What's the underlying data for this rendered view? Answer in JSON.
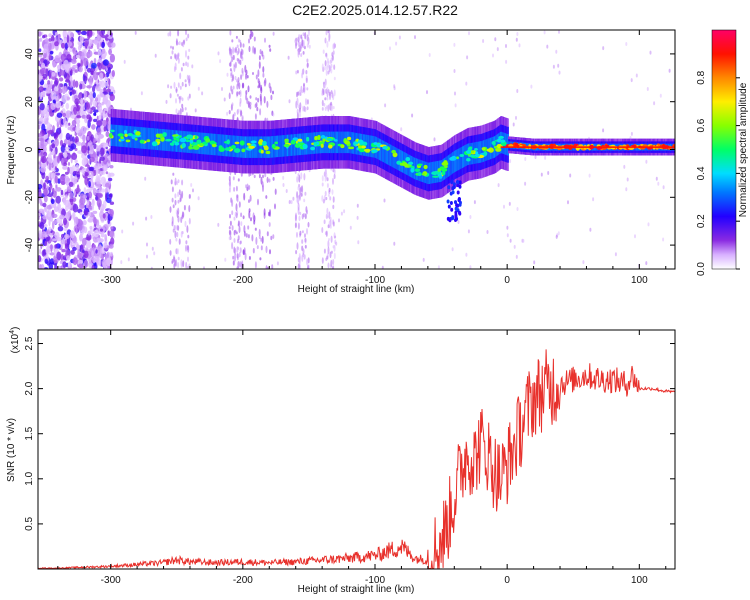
{
  "title": "C2E2.2025.014.12.57.R22",
  "chart_data": [
    {
      "type": "heatmap",
      "xlabel": "Height of straight line (km)",
      "ylabel": "Frequency (Hz)",
      "xlim": [
        -355,
        127
      ],
      "ylim": [
        -50,
        50
      ],
      "x_ticks": [
        -300,
        -200,
        -100,
        0,
        100
      ],
      "x_tick_labels": [
        "-300",
        "-200",
        "-100",
        "0",
        "100"
      ],
      "y_ticks": [
        -40,
        -20,
        0,
        20,
        40
      ],
      "y_tick_labels": [
        "-40",
        "-20",
        "0",
        "20",
        "40"
      ],
      "colorbar": {
        "label": "Normalized spectral amplitude",
        "range": [
          0,
          1
        ],
        "ticks": [
          0.0,
          0.2,
          0.4,
          0.6,
          0.8
        ],
        "tick_labels": [
          "0.0",
          "0.2",
          "0.4",
          "0.6",
          "0.8"
        ],
        "colors": [
          "#ffffff",
          "#cc88ff",
          "#7700ee",
          "#0000ff",
          "#00c8ff",
          "#00ff66",
          "#ccff00",
          "#ffee00",
          "#ff7700",
          "#ff0000",
          "#ff0077"
        ]
      },
      "ridge": {
        "name": "",
        "x": [
          -300,
          -280,
          -260,
          -240,
          -220,
          -200,
          -180,
          -160,
          -140,
          -120,
          -100,
          -90,
          -80,
          -70,
          -60,
          -50,
          -40,
          -30,
          -20,
          -10,
          -5,
          0,
          20,
          40,
          60,
          80,
          100,
          127
        ],
        "y": [
          6,
          5,
          4,
          3,
          2,
          1,
          1,
          2,
          3,
          3,
          1,
          -2,
          -5,
          -8,
          -10,
          -9,
          -5,
          -2,
          -1,
          1,
          3,
          2,
          1,
          1,
          1,
          1,
          1,
          1
        ]
      }
    },
    {
      "type": "line",
      "xlabel": "Height of straight line (km)",
      "ylabel": "SNR (10 * v/v)",
      "y_multiplier": "(x10",
      "y_multiplier_exp": "4",
      "y_multiplier_close": ")",
      "xlim": [
        -355,
        127
      ],
      "ylim": [
        0,
        2.65
      ],
      "x_ticks": [
        -300,
        -200,
        -100,
        0,
        100
      ],
      "x_tick_labels": [
        "-300",
        "-200",
        "-100",
        "0",
        "100"
      ],
      "y_ticks": [
        0.5,
        1.0,
        1.5,
        2.0,
        2.5
      ],
      "y_tick_labels": [
        "0.5",
        "1.0",
        "1.5",
        "2.0",
        "2.5"
      ],
      "color": "#e8312c",
      "x": [
        -355,
        -340,
        -320,
        -300,
        -280,
        -260,
        -250,
        -240,
        -220,
        -200,
        -180,
        -160,
        -140,
        -120,
        -100,
        -90,
        -80,
        -70,
        -60,
        -55,
        -50,
        -45,
        -40,
        -35,
        -30,
        -25,
        -20,
        -15,
        -10,
        -5,
        0,
        5,
        10,
        15,
        20,
        30,
        40,
        50,
        60,
        70,
        80,
        90,
        95,
        100,
        110,
        120,
        127
      ],
      "y": [
        0.01,
        0.01,
        0.02,
        0.03,
        0.05,
        0.07,
        0.1,
        0.08,
        0.07,
        0.08,
        0.07,
        0.08,
        0.1,
        0.12,
        0.15,
        0.2,
        0.25,
        0.12,
        0.1,
        0.2,
        0.3,
        0.5,
        0.8,
        1.1,
        1.3,
        1.2,
        1.4,
        1.3,
        1.1,
        1.0,
        1.15,
        1.35,
        1.55,
        1.75,
        1.9,
        2.0,
        2.05,
        2.1,
        2.15,
        2.1,
        2.1,
        2.05,
        2.15,
        2.0,
        2.0,
        1.97,
        1.96
      ]
    }
  ]
}
